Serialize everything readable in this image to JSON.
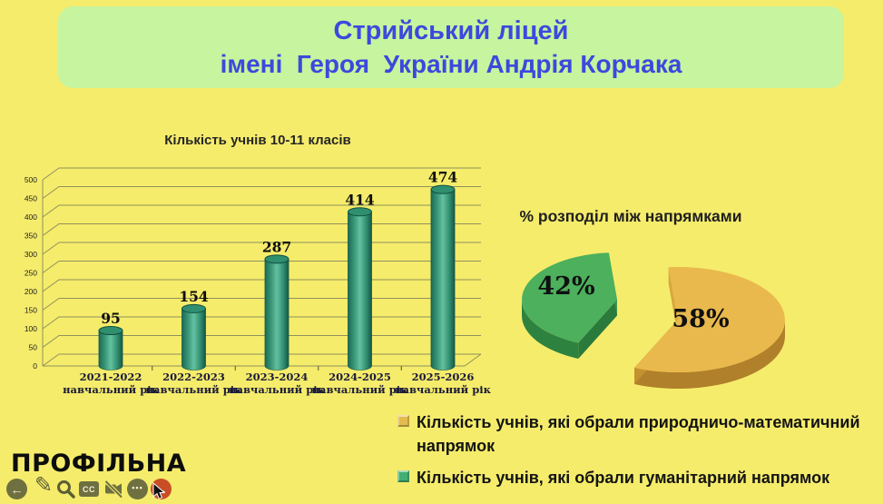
{
  "header": {
    "line1": "Стрийський ліцей",
    "line2": "імені  Героя  України Андрія Корчака"
  },
  "chart_data": [
    {
      "type": "bar",
      "style": "3d-cylinder",
      "title": "Кількість учнів 10-11 класів",
      "categories": [
        "2021-2022",
        "2022-2023",
        "2023-2024",
        "2024-2025",
        "2025-2026"
      ],
      "category_sublabel": "навчальний рік",
      "values": [
        95,
        154,
        287,
        414,
        474
      ],
      "ylim": [
        0,
        500
      ],
      "yticks": [
        0,
        50,
        100,
        150,
        200,
        250,
        300,
        350,
        400,
        450,
        500
      ],
      "grid": true,
      "legend_position": "none",
      "bar_color": "#3a9b7c"
    },
    {
      "type": "pie",
      "style": "3d-exploded",
      "title": "% розподіл між напрямками",
      "slices": [
        {
          "label": "58%",
          "value": 58,
          "color": "#e9b94d"
        },
        {
          "label": "42%",
          "value": 42,
          "color": "#4cb05c"
        }
      ],
      "legend_position": "below-right"
    }
  ],
  "legend": {
    "items": [
      {
        "color": "#e3bb4e",
        "label": "Кількість учнів, які обрали природничо-математичний напрямок"
      },
      {
        "color": "#43ad72",
        "label": "Кількість учнів, які обрали гуманітарний напрямок"
      }
    ]
  },
  "footer": {
    "logo": "ПРОФІЛЬНА",
    "captions_label": "CC",
    "more_glyph": "•••",
    "back_glyph": "←",
    "next_glyph": "→",
    "pen_glyph": "✎"
  },
  "theme": {
    "background": "#f5ec6b",
    "title_band": "#c7f49e",
    "title_text": "#3c49dd",
    "grid_line": "#90905e",
    "bar_edge": "#1b6b54",
    "pie_green_dark": "#2e8240",
    "pie_yellow_dark": "#b0802a",
    "toolbar_icon": "#6e7040",
    "next_button": "#c94e26"
  }
}
